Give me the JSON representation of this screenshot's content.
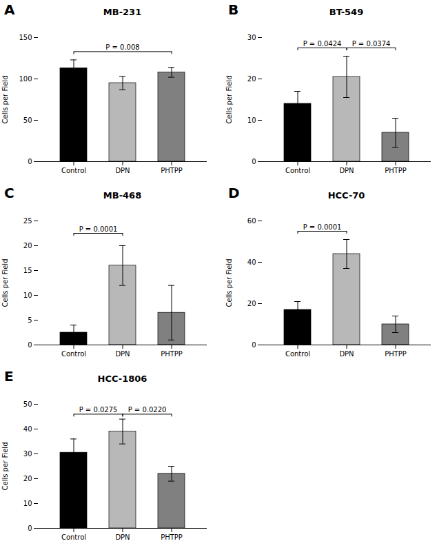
{
  "chart_data": [
    {
      "type": "bar",
      "panel_label": "A",
      "title": "MB-231",
      "categories": [
        "Control",
        "DPN",
        "PHTPP"
      ],
      "values": [
        113,
        95,
        108
      ],
      "errors": [
        10,
        8,
        6
      ],
      "colors": [
        "#000000",
        "#b8b8b8",
        "#808080"
      ],
      "ylim": [
        0,
        150
      ],
      "yticks": [
        0,
        50,
        100,
        150
      ],
      "ylabel": "Cells per Field",
      "significance": [
        {
          "from": "Control",
          "to": "PHTPP",
          "y": 133,
          "label": "P = 0.008"
        }
      ]
    },
    {
      "type": "bar",
      "panel_label": "B",
      "title": "BT-549",
      "categories": [
        "Control",
        "DPN",
        "PHTPP"
      ],
      "values": [
        14,
        20.5,
        7
      ],
      "errors": [
        3,
        5,
        3.5
      ],
      "colors": [
        "#000000",
        "#b8b8b8",
        "#808080"
      ],
      "ylim": [
        0,
        30
      ],
      "yticks": [
        0,
        10,
        20,
        30
      ],
      "ylabel": "Cells per Field",
      "significance": [
        {
          "from": "Control",
          "to": "DPN",
          "y": 27.5,
          "label": "P = 0.0424"
        },
        {
          "from": "DPN",
          "to": "PHTPP",
          "y": 27.5,
          "label": "P = 0.0374"
        }
      ]
    },
    {
      "type": "bar",
      "panel_label": "C",
      "title": "MB-468",
      "categories": [
        "Control",
        "DPN",
        "PHTPP"
      ],
      "values": [
        2.5,
        16,
        6.5
      ],
      "errors": [
        1.5,
        4,
        5.5
      ],
      "colors": [
        "#000000",
        "#b8b8b8",
        "#808080"
      ],
      "ylim": [
        0,
        25
      ],
      "yticks": [
        0,
        5,
        10,
        15,
        20,
        25
      ],
      "ylabel": "Cells per Field",
      "significance": [
        {
          "from": "Control",
          "to": "DPN",
          "y": 22.5,
          "label": "P = 0.0001"
        }
      ]
    },
    {
      "type": "bar",
      "panel_label": "D",
      "title": "HCC-70",
      "categories": [
        "Control",
        "DPN",
        "PHTPP"
      ],
      "values": [
        17,
        44,
        10
      ],
      "errors": [
        4,
        7,
        4
      ],
      "colors": [
        "#000000",
        "#b8b8b8",
        "#808080"
      ],
      "ylim": [
        0,
        60
      ],
      "yticks": [
        0,
        20,
        40,
        60
      ],
      "ylabel": "Cells per Field",
      "significance": [
        {
          "from": "Control",
          "to": "DPN",
          "y": 55,
          "label": "P = 0.0001"
        }
      ]
    },
    {
      "type": "bar",
      "panel_label": "E",
      "title": "HCC-1806",
      "categories": [
        "Control",
        "DPN",
        "PHTPP"
      ],
      "values": [
        30.5,
        39,
        22
      ],
      "errors": [
        5.5,
        5,
        3
      ],
      "colors": [
        "#000000",
        "#b8b8b8",
        "#808080"
      ],
      "ylim": [
        0,
        50
      ],
      "yticks": [
        0,
        10,
        20,
        30,
        40,
        50
      ],
      "ylabel": "Cells per Field",
      "significance": [
        {
          "from": "Control",
          "to": "DPN",
          "y": 46,
          "label": "P = 0.0275"
        },
        {
          "from": "DPN",
          "to": "PHTPP",
          "y": 46,
          "label": "P = 0.0220"
        }
      ]
    }
  ]
}
